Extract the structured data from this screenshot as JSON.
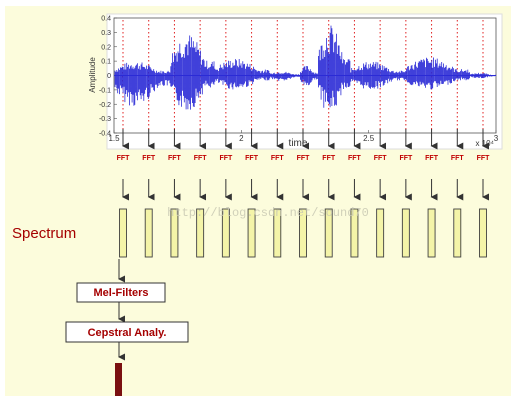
{
  "waveform": {
    "ylabel": "Amplitude",
    "xlabel": "time",
    "y_ticks": [
      "0.4",
      "0.3",
      "0.2",
      "0.1",
      "0",
      "-0.1",
      "-0.2",
      "-0.3",
      "-0.4"
    ],
    "x_ticks": [
      "1.5",
      "2",
      "2.5",
      "3"
    ],
    "x_exponent": "x 10⁴",
    "ylim": [
      -0.4,
      0.4
    ],
    "xlim": [
      1.5,
      3.0
    ]
  },
  "fft_label": "FFT",
  "frame_count": 15,
  "spectrum_label": "Spectrum",
  "watermark": "http://blog.csdn.net/sound70",
  "blocks": {
    "mel": "Mel-Filters",
    "cepstral": "Cepstral Analy."
  },
  "colors": {
    "panel_bg": "#fcfcdc",
    "signal": "#2b2bd6",
    "frame_line": "#e02020",
    "fft_text": "#c00000",
    "spectrum_text": "#a50000",
    "bar_fill": "#f4f4a8",
    "bar_stroke": "#404040",
    "output_bar": "#7a1010"
  }
}
